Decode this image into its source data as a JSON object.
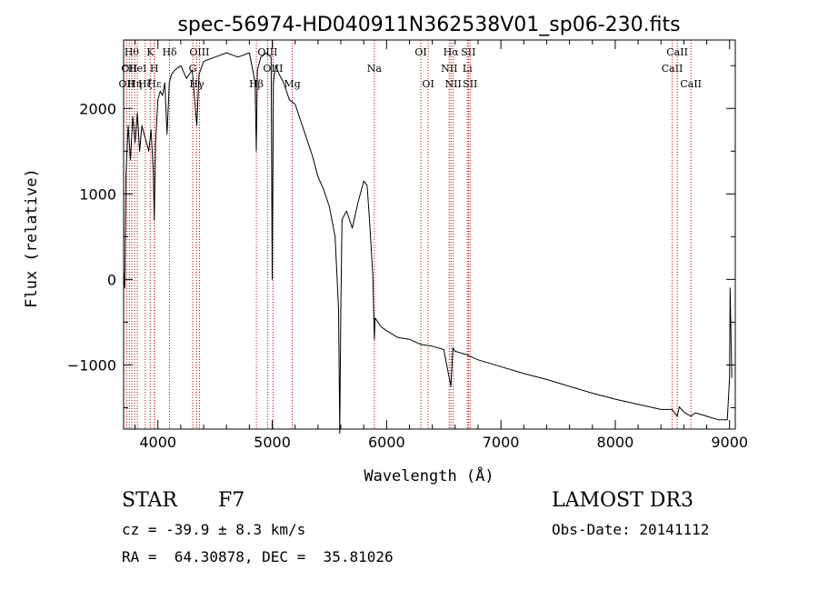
{
  "chart_data": {
    "type": "line",
    "title": "spec-56974-HD040911N362538V01_sp06-230.fits",
    "xlabel": "Wavelength (Å)",
    "ylabel": "Flux (relative)",
    "xlim": [
      3700,
      9050
    ],
    "ylim": [
      -1750,
      2800
    ],
    "xticks": [
      4000,
      5000,
      6000,
      7000,
      8000,
      9000
    ],
    "yticks": [
      -1000,
      0,
      1000,
      2000
    ],
    "grid": false,
    "series": [
      {
        "name": "flux",
        "x": [
          3700,
          3710,
          3720,
          3740,
          3760,
          3780,
          3800,
          3820,
          3840,
          3860,
          3880,
          3900,
          3920,
          3940,
          3960,
          3968,
          3980,
          4000,
          4020,
          4040,
          4060,
          4080,
          4100,
          4120,
          4150,
          4200,
          4250,
          4300,
          4340,
          4360,
          4400,
          4500,
          4600,
          4700,
          4800,
          4850,
          4861,
          4870,
          4900,
          4950,
          4990,
          5000,
          5010,
          5030,
          5060,
          5100,
          5150,
          5200,
          5250,
          5300,
          5350,
          5400,
          5450,
          5500,
          5550,
          5580,
          5590,
          5600,
          5610,
          5650,
          5700,
          5750,
          5800,
          5830,
          5850,
          5880,
          5893,
          5900,
          5950,
          6000,
          6100,
          6200,
          6300,
          6400,
          6500,
          6563,
          6580,
          6600,
          6700,
          6800,
          7000,
          7200,
          7400,
          7600,
          7800,
          8000,
          8200,
          8400,
          8498,
          8542,
          8560,
          8600,
          8662,
          8700,
          8800,
          8900,
          8980,
          9000,
          9005,
          9020
        ],
        "y": [
          100,
          -100,
          1200,
          1800,
          1400,
          1900,
          1600,
          1950,
          1500,
          1800,
          1700,
          1600,
          1500,
          1750,
          1250,
          700,
          1600,
          2100,
          2200,
          2150,
          2300,
          1700,
          2300,
          2400,
          2450,
          2500,
          2350,
          2450,
          1800,
          2400,
          2550,
          2600,
          2650,
          2600,
          2650,
          2300,
          1500,
          2450,
          2600,
          2650,
          2600,
          0,
          2300,
          2500,
          2400,
          2300,
          2100,
          2050,
          1850,
          1650,
          1450,
          1200,
          1050,
          850,
          500,
          -350,
          -1800,
          -350,
          700,
          800,
          600,
          900,
          1150,
          1100,
          700,
          50,
          -700,
          -450,
          -550,
          -600,
          -680,
          -700,
          -760,
          -780,
          -820,
          -1250,
          -800,
          -840,
          -880,
          -940,
          -1020,
          -1100,
          -1170,
          -1250,
          -1330,
          -1400,
          -1460,
          -1520,
          -1520,
          -1600,
          -1490,
          -1550,
          -1600,
          -1560,
          -1600,
          -1640,
          -1640,
          -1150,
          -100,
          -1150
        ]
      }
    ],
    "line_markers": [
      {
        "wl": 3727,
        "label": "OII",
        "row": 2
      },
      {
        "wl": 3750,
        "label": "OII",
        "row": 1
      },
      {
        "wl": 3771,
        "label": "Hθ",
        "row": 0
      },
      {
        "wl": 3797,
        "label": "Hη",
        "row": 2
      },
      {
        "wl": 3820,
        "label": "HeI",
        "row": 1
      },
      {
        "wl": 3889,
        "label": "Hζ",
        "row": 2
      },
      {
        "wl": 3933,
        "label": "K",
        "row": 0
      },
      {
        "wl": 3968,
        "label": "H",
        "row": 1
      },
      {
        "wl": 3970,
        "label": "Hε",
        "row": 2
      },
      {
        "wl": 4102,
        "label": "Hδ",
        "row": 0
      },
      {
        "wl": 4304,
        "label": "G",
        "row": 1
      },
      {
        "wl": 4340,
        "label": "Hγ",
        "row": 2
      },
      {
        "wl": 4363,
        "label": "OIII",
        "row": 0
      },
      {
        "wl": 4861,
        "label": "Hβ",
        "row": 2
      },
      {
        "wl": 4959,
        "label": "OIII",
        "row": 0
      },
      {
        "wl": 5007,
        "label": "OIII",
        "row": 1
      },
      {
        "wl": 5175,
        "label": "Mg",
        "row": 2
      },
      {
        "wl": 5893,
        "label": "Na",
        "row": 1
      },
      {
        "wl": 6300,
        "label": "OI",
        "row": 0
      },
      {
        "wl": 6364,
        "label": "OI",
        "row": 2
      },
      {
        "wl": 6548,
        "label": "NII",
        "row": 1
      },
      {
        "wl": 6563,
        "label": "Hα",
        "row": 0
      },
      {
        "wl": 6583,
        "label": "NII",
        "row": 2
      },
      {
        "wl": 6707,
        "label": "Li",
        "row": 1
      },
      {
        "wl": 6716,
        "label": "SII",
        "row": 0
      },
      {
        "wl": 6731,
        "label": "SII",
        "row": 2
      },
      {
        "wl": 8498,
        "label": "CaII",
        "row": 1
      },
      {
        "wl": 8542,
        "label": "CaII",
        "row": 0
      },
      {
        "wl": 8662,
        "label": "CaII",
        "row": 2
      }
    ]
  },
  "info": {
    "class_label": "STAR",
    "subclass": "F7",
    "redshift": "cz = -39.9 ± 8.3 km/s",
    "coords": "RA =  64.30878, DEC =  35.81026",
    "survey": "LAMOST DR3",
    "obs_date": "Obs-Date: 20141112"
  },
  "colors": {
    "line_marker": "#c00000",
    "spectrum": "#000000"
  }
}
